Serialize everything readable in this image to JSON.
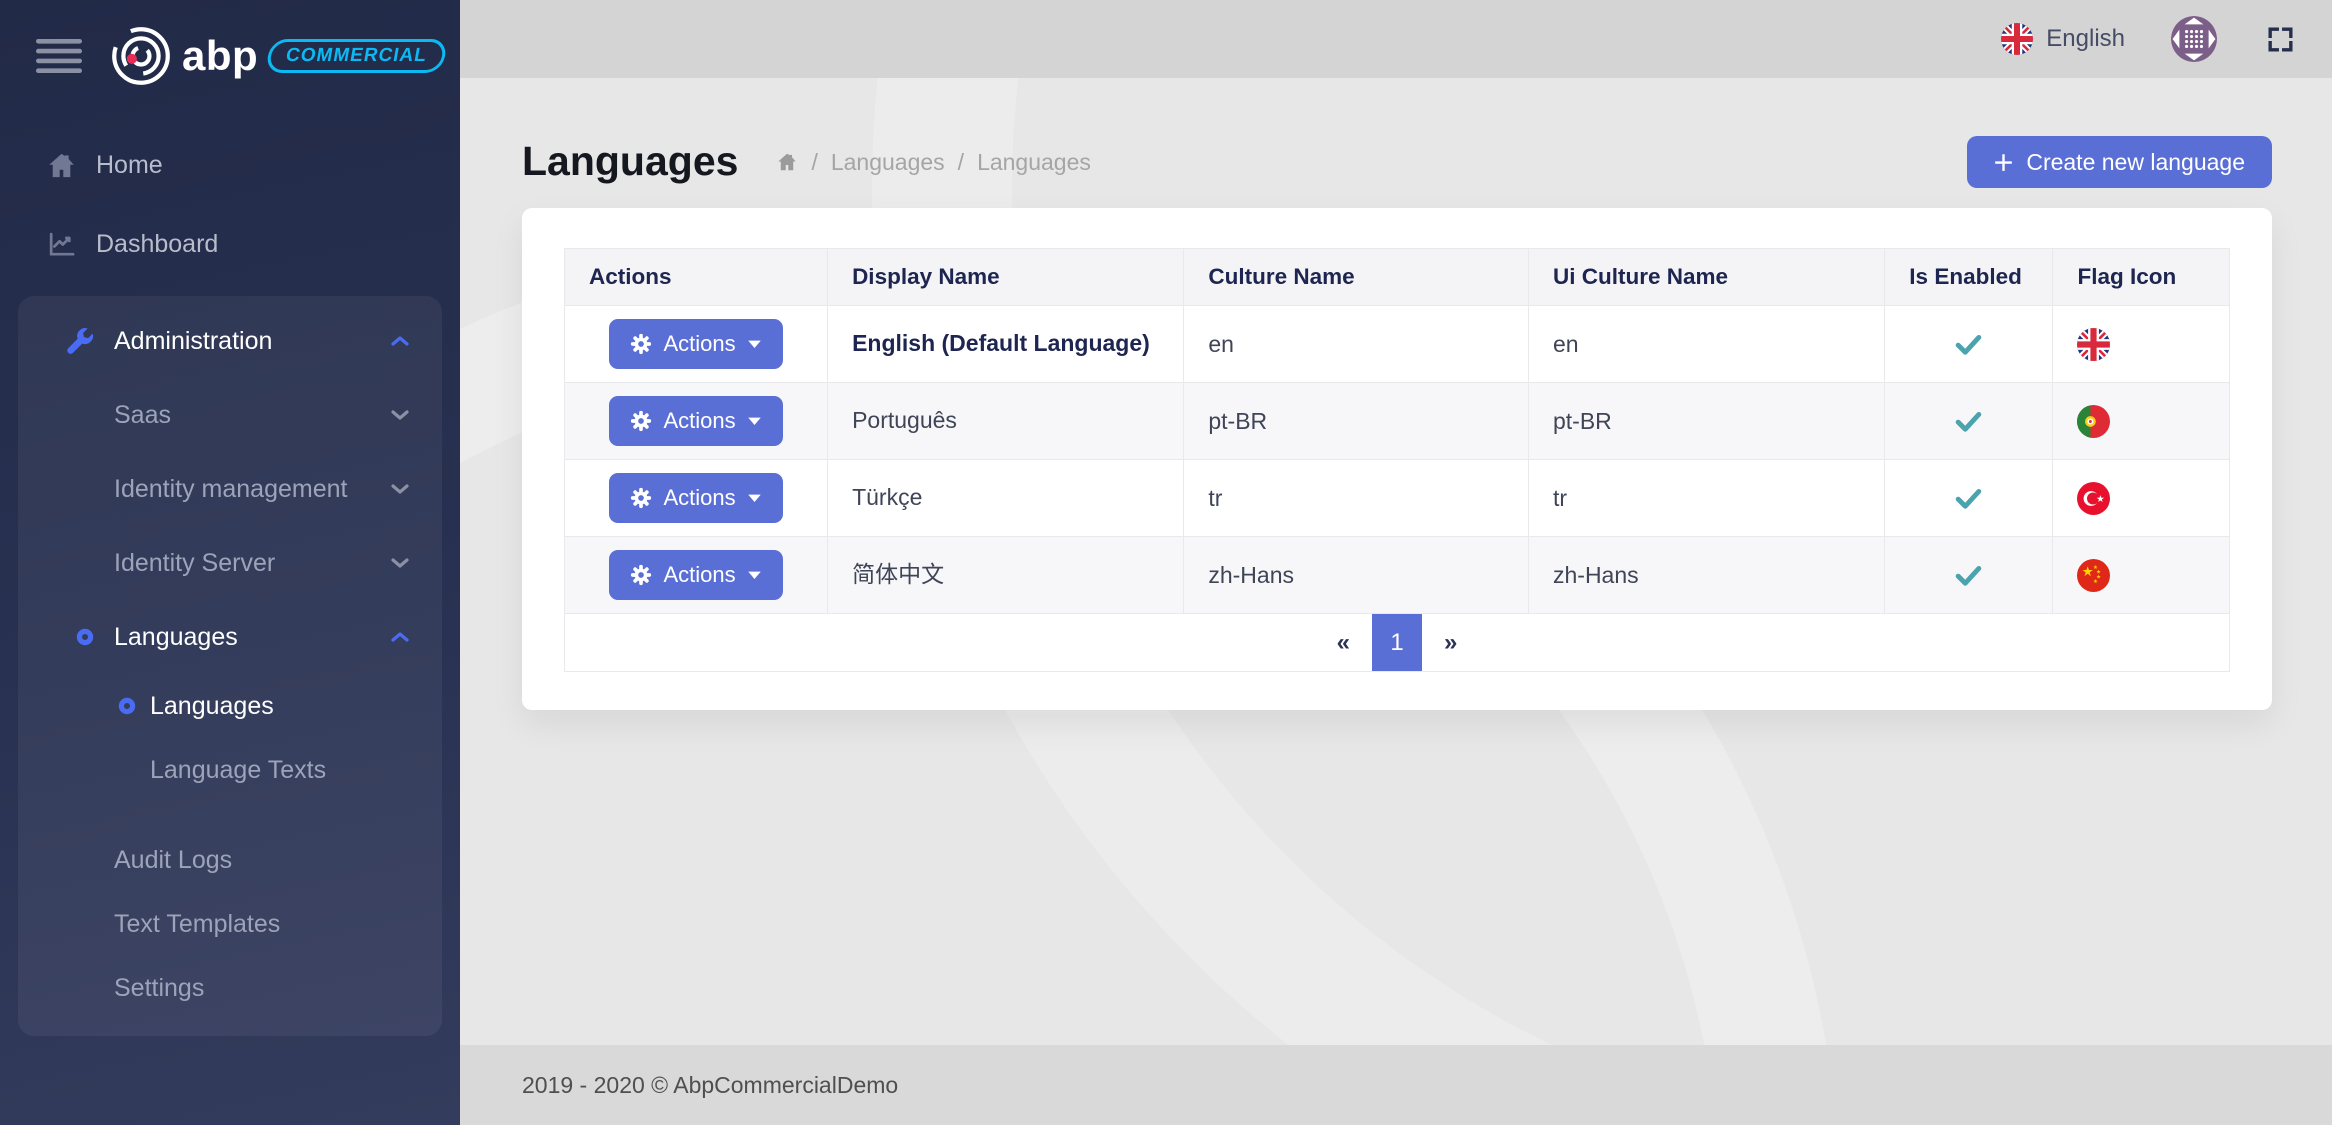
{
  "colors": {
    "accent": "#5a6fd6",
    "accent-bright": "#4a6cf3",
    "brand-cyan": "#0cb9f2",
    "logo-red": "#e82c55",
    "check": "#4ba3ae",
    "topbar": "#d4d4d4",
    "content-bg": "#e7e7e7",
    "footer-bg": "#d9d9d9",
    "sidebar-dark": "#242e4c"
  },
  "brand": {
    "logo_text": "abp",
    "badge": "COMMERCIAL"
  },
  "topbar": {
    "language_label": "English",
    "language_flag": "gb"
  },
  "sidebar": {
    "top_items": [
      {
        "id": "home",
        "label": "Home",
        "icon": "home"
      },
      {
        "id": "dashboard",
        "label": "Dashboard",
        "icon": "chart"
      }
    ],
    "admin_items": [
      {
        "id": "administration",
        "label": "Administration",
        "icon": "wrench",
        "chevron": "up",
        "active": true,
        "parent": true
      },
      {
        "id": "saas",
        "label": "Saas",
        "chevron": "down",
        "parent": true
      },
      {
        "id": "identity-management",
        "label": "Identity management",
        "chevron": "down",
        "parent": true
      },
      {
        "id": "identity-server",
        "label": "Identity Server",
        "chevron": "down",
        "parent": true
      },
      {
        "id": "languages",
        "label": "Languages",
        "bullet": true,
        "chevron": "up",
        "active": true,
        "parent": true
      },
      {
        "id": "languages-languages",
        "label": "Languages",
        "bullet": true,
        "level": 2,
        "active": true
      },
      {
        "id": "language-texts",
        "label": "Language Texts",
        "level": 2
      },
      {
        "gap": true
      },
      {
        "id": "audit-logs",
        "label": "Audit Logs"
      },
      {
        "id": "text-templates",
        "label": "Text Templates"
      },
      {
        "id": "settings",
        "label": "Settings"
      }
    ]
  },
  "page": {
    "title": "Languages",
    "breadcrumb_sep": "/",
    "breadcrumb": [
      "Languages",
      "Languages"
    ],
    "create_button_label": "Create new language"
  },
  "table": {
    "headers": [
      "Actions",
      "Display Name",
      "Culture Name",
      "Ui Culture Name",
      "Is Enabled",
      "Flag Icon"
    ],
    "actions_label": "Actions",
    "rows": [
      {
        "id": "en",
        "display_name": "English (Default Language)",
        "culture_name": "en",
        "ui_culture_name": "en",
        "is_enabled": true,
        "flag": "gb",
        "default": true
      },
      {
        "id": "pt-br",
        "display_name": "Português",
        "culture_name": "pt-BR",
        "ui_culture_name": "pt-BR",
        "is_enabled": true,
        "flag": "pt"
      },
      {
        "id": "tr",
        "display_name": "Türkçe",
        "culture_name": "tr",
        "ui_culture_name": "tr",
        "is_enabled": true,
        "flag": "tr"
      },
      {
        "id": "zh-hans",
        "display_name": "简体中文",
        "culture_name": "zh-Hans",
        "ui_culture_name": "zh-Hans",
        "is_enabled": true,
        "flag": "cn"
      }
    ]
  },
  "pagination": {
    "prev": "«",
    "active_page": "1",
    "next": "»"
  },
  "footer": {
    "copyright": "2019 - 2020 © AbpCommercialDemo"
  }
}
